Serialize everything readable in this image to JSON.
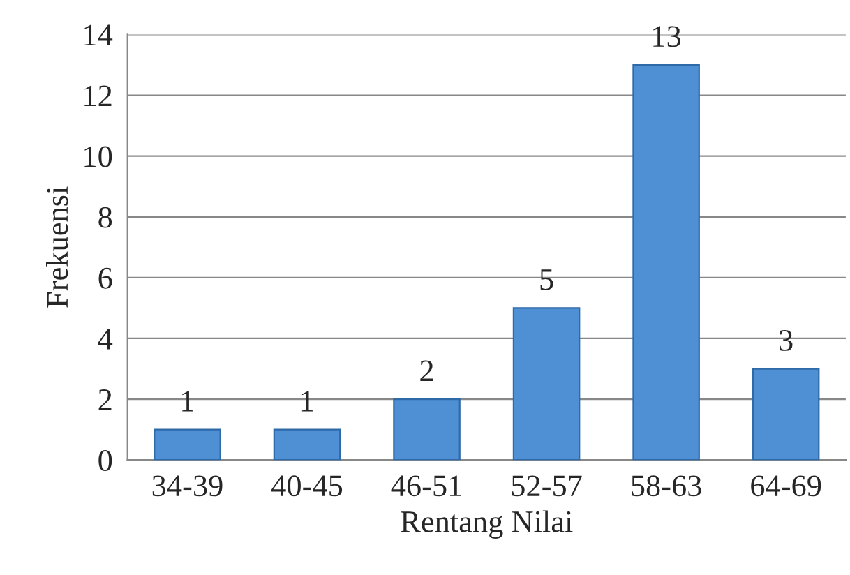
{
  "chart_data": {
    "type": "bar",
    "xlabel": "Rentang Nilai",
    "ylabel": "Frekuensi",
    "categories": [
      "34-39",
      "40-45",
      "46-51",
      "52-57",
      "58-63",
      "64-69"
    ],
    "values": [
      1,
      1,
      2,
      5,
      13,
      3
    ],
    "color": "#4f8fd3",
    "ylim": [
      0,
      14
    ],
    "yticks": [
      0,
      2,
      4,
      6,
      8,
      10,
      12,
      14
    ],
    "grid": "y",
    "data_labels": true
  }
}
